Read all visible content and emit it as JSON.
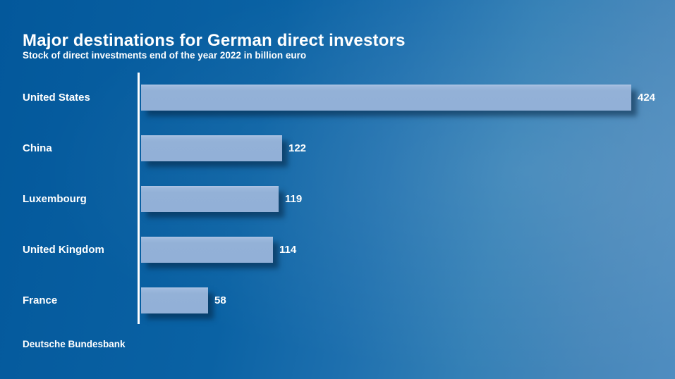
{
  "page": {
    "title": "Major destinations for German direct investors",
    "subtitle": "Stock of direct investments end of the year 2022 in billion euro",
    "source": "Deutsche Bundesbank"
  },
  "colors": {
    "background_left": "#03589b",
    "background_right": "#4f8dc0",
    "bar_fill": "#92b0d7",
    "bar_shadow": "rgba(6,36,66,0.55)",
    "axis_line": "#ffffff",
    "text": "#ffffff"
  },
  "chart_data": {
    "type": "bar",
    "orientation": "horizontal",
    "title": "Major destinations for German direct investors",
    "subtitle": "Stock of direct investments end of the year 2022 in billion euro",
    "categories": [
      "United States",
      "China",
      "Luxembourg",
      "United Kingdom",
      "France"
    ],
    "values": [
      424,
      122,
      119,
      114,
      58
    ],
    "unit": "billion euro",
    "xlabel": "",
    "ylabel": "",
    "xlim": [
      0,
      440
    ],
    "grid": false,
    "legend": false,
    "value_labels": true,
    "source": "Deutsche Bundesbank"
  }
}
